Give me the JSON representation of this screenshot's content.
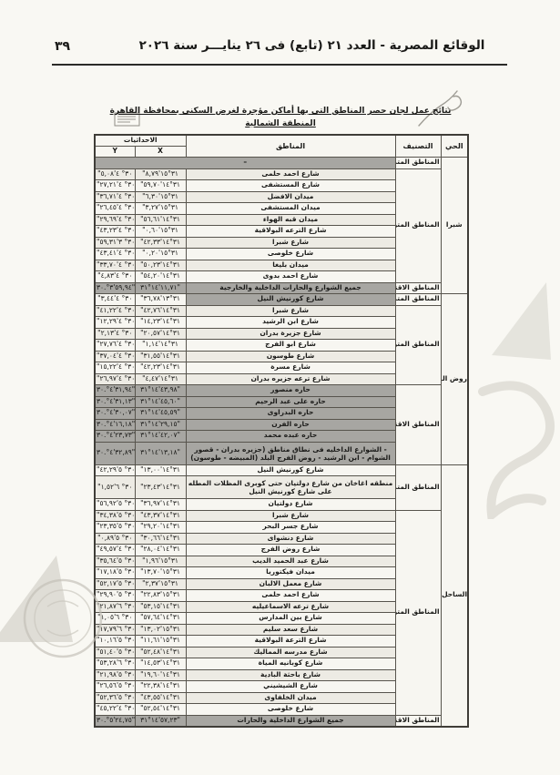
{
  "page_header": {
    "gazette_title": "الوقائع المصرية - العدد ٢١ (تابع) فى ٢٦ ينايـــر سنة ٢٠٢٦",
    "page_number": "٣٩"
  },
  "table_title": "نتائج عمل لجان حصر المناطق التى بها أماكن مؤجرة لغرض السكنى بمحافظة القاهرة",
  "table_subtitle": "المنطقة الشمالية",
  "colors": {
    "paper": "#f9f8f3",
    "shaded_row": "#a7a6a2",
    "border": "#57544d",
    "ink": "#1a1a18"
  },
  "table": {
    "headers": {
      "district": "الحي",
      "classification": "التصنيف",
      "areas": "المناطق",
      "coordinates": "الاحداثيات",
      "x": "X",
      "y": "Y"
    },
    "districts": [
      {
        "name": "شبرا",
        "groups": [
          {
            "label": "المناطق المتميزة",
            "rows": [
              {
                "area": "–",
                "x": "",
                "y": "",
                "shade": "full"
              }
            ]
          },
          {
            "label": "المناطق المتوسطة",
            "rows": [
              {
                "area": "شارع احمد حلمى",
                "x": "\"٨,٧٩'١٥°٣١",
                "y": "\"٥,٠٨'٤ °٣٠",
                "shade": "none"
              },
              {
                "area": "شارع المستشفى",
                "x": "\"٥٩,٧٠'١٤°٣١",
                "y": "\"٢٧,٢١'٤ °٣٠",
                "shade": "none"
              },
              {
                "area": "ميدان الافضل",
                "x": "\"٦,٣٠'١٥°٣١",
                "y": "\"٣٦,٧١'٤ °٣٠",
                "shade": "none"
              },
              {
                "area": "ميدان المستشفى",
                "x": "\"٣,٢٧'١٥°٣١",
                "y": "\"٢٦,٤٥'٤ °٣٠",
                "shade": "none"
              },
              {
                "area": "ميدان قبه الهواء",
                "x": "\"٥٦,٦١'١٤°٣١",
                "y": "\"٢٩,٦٩'٤ °٣٠",
                "shade": "none"
              },
              {
                "area": "شارع الترعه البولاقية",
                "x": "\"٠,٦٠'١٥°٣١",
                "y": "\"٤٣,٢٣'٤ °٣٠",
                "shade": "none"
              },
              {
                "area": "شارع شبرا",
                "x": "\"٤٢,٣٣'١٤°٣١",
                "y": "\"٥٩,٣١'٣ °٣٠",
                "shade": "none"
              },
              {
                "area": "شارع خلوصى",
                "x": "\"٠,٢٠'١٥°٣١",
                "y": "\"٤٣,٤١'٤ °٣٠",
                "shade": "none"
              },
              {
                "area": "ميدان بليغا",
                "x": "\"٥٠,٢٣'١٤°٣١",
                "y": "\"٣٣,٧٠'٤ °٣٠",
                "shade": "none"
              },
              {
                "area": "شارع احمد بدوى",
                "x": "\"٥٤,٢٠'١٤°٣١",
                "y": "\"٤,٨٣'٤ °٣٠",
                "shade": "none"
              }
            ]
          },
          {
            "label": "المناطق الاقتصادية",
            "rows": [
              {
                "area": "جميع الشوارع والحارات الداخلية والخارجية",
                "x": "٣١°١٤'١١,٧١\"",
                "y": "٣٠.°٣'٥٩,٩٤\"",
                "shade": "full"
              }
            ]
          }
        ]
      },
      {
        "name": "روض الفرج",
        "groups": [
          {
            "label": "المناطق المتميزة",
            "rows": [
              {
                "area": "شارع كورنيش النيل",
                "x": "\"٣٦,٧٨'١٣°٣١",
                "y": "\"٣,٤٤'٤ °٣٠",
                "shade": "area"
              }
            ]
          },
          {
            "label": "المناطق المتوسطة",
            "rows": [
              {
                "area": "شارع شبرا",
                "x": "\"٤٢,٧٦'١٤°٣١",
                "y": "\"٤١,٢٢'٤ °٣٠",
                "shade": "none"
              },
              {
                "area": "شارع ابن الرشيد",
                "x": "\"١٤,٢٣'١٤°٣١",
                "y": "\"١٢,٢٩'٤ °٣٠",
                "shade": "none"
              },
              {
                "area": "شارع جزيرة بدران",
                "x": "\"٢٠,٥٧'١٤°٣١",
                "y": "\"٢,١٣'٤ °٣٠",
                "shade": "none"
              },
              {
                "area": "شارع ابو الفرج",
                "x": "\"١,١٤'١٤°٣١",
                "y": "\"٢٧,٧٦'٤ °٣٠",
                "shade": "none"
              },
              {
                "area": "شارع طوسون",
                "x": "\"٣١,٥٥'١٤°٣١",
                "y": "\"٣٧,٠٤'٤ °٣٠",
                "shade": "none"
              },
              {
                "area": "شارع مسرة",
                "x": "\"٤٢,٢٣'١٤°٣١",
                "y": "\"١٥,٢٢'٤ °٣٠",
                "shade": "none"
              },
              {
                "area": "شارع ترعه جزيره بدران",
                "x": "\"٤,٤٧'١٤°٣١",
                "y": "\"٢٦,٩٧'٤ °٣٠",
                "shade": "none"
              }
            ]
          },
          {
            "label": "المناطق الاقتصادية",
            "rows": [
              {
                "area": "حاره منصور",
                "x": "٣١°١٤'٤٣,٩٨\"",
                "y": "٣٠.°٤'٣١,٩٤\"",
                "shade": "full"
              },
              {
                "area": "حاره على عبد الرحيم",
                "x": "٣١°١٤'٤٥,٦٠\"",
                "y": "٣٠.°٤'٣١,١٣\"",
                "shade": "full"
              },
              {
                "area": "حاره البدراوى",
                "x": "٣١°١٤'٤٥,٥٩\"",
                "y": "٣٠.°٤'٣٠,٠٧\"",
                "shade": "full"
              },
              {
                "area": "حاره الفرن",
                "x": "٣١°١٤'٢٩,١٥\"",
                "y": "٣٠.°٤'١٦,١٨\"",
                "shade": "full"
              },
              {
                "area": "حاره عبده محمد",
                "x": "٣١°١٤'٤٢,٠٧\"",
                "y": "٣٠.°٤'٢٣,٧٣\"",
                "shade": "full"
              },
              {
                "area": "- الشوارع الداخليه فى نطاق مناطق (جزيره بدران - قصور الشوام - ابن الرشيد - روض الفرج البلد (المبيضه - طوسون)",
                "x": "٣١°١٤'١٣,١٨\"",
                "y": "٣٠.°٤'٣٢,٨٩\"",
                "shade": "full",
                "tall": true
              }
            ]
          }
        ]
      },
      {
        "name": "الساحل",
        "groups": [
          {
            "label": "المناطق المتميزة",
            "rows": [
              {
                "area": "شارع كورنيش النيل",
                "x": "\"١٣,٠٠'١٤°٣١",
                "y": "\"٤٢,٢٩'٥ °٣٠",
                "shade": "none"
              },
              {
                "area": "منطقه اغاخان من شارع دولتيان حتى كوبرى المظلات المطله على شارع كورنيش النيل",
                "x": "\"٢٣,٤٣'١٤°٣١",
                "y": "\"١,٥٢'٦ °٣٠",
                "shade": "none",
                "tall": true
              },
              {
                "area": "شارع دولتيان",
                "x": "\"٣٦,٩٧'١٤°٣١",
                "y": "\"٥٦,٩٢'٥ °٣٠",
                "shade": "none"
              }
            ]
          },
          {
            "label": "المناطق المتوسطة",
            "rows": [
              {
                "area": "شارع شبرا",
                "x": "\"٤٣,٣٧'١٤°٣١",
                "y": "\"٣٤,٣٨'٥ °٣٠",
                "shade": "none"
              },
              {
                "area": "شارع جسر البحر",
                "x": "\"٢٩,٢٠'١٤°٣١",
                "y": "\"٢٣,٣٥'٥ °٣٠",
                "shade": "none"
              },
              {
                "area": "شارع دنشواى",
                "x": "\"٣٠,٦٦'١٤°٣١",
                "y": "\"٠,٨٩'٥ °٣٠",
                "shade": "none"
              },
              {
                "area": "شارع روض الفرج",
                "x": "\"٢٨,٠٤'١٤°٣١",
                "y": "\"٤٩,٥٧'٤ °٣٠",
                "shade": "none"
              },
              {
                "area": "شارع عبد الحميد الديب",
                "x": "\"١,٩٦'١٥°٣١",
                "y": "\"٣٥,٦٤'٥ °٣٠",
                "shade": "none"
              },
              {
                "area": "ميدان فيكتوريا",
                "x": "\"١٣,٧٠'١٥°٣١",
                "y": "\"١٧,١٨'٥ °٣٠",
                "shade": "none"
              },
              {
                "area": "شارع معمل الالبان",
                "x": "\"٢,٣٧'١٥°٣١",
                "y": "\"٥٢,١٧'٥ °٣٠",
                "shade": "none"
              },
              {
                "area": "شارع احمد حلمى",
                "x": "\"٢٢,٨٣'١٥°٣١",
                "y": "\"٢٩,٩٠'٥ °٣٠",
                "shade": "none"
              },
              {
                "area": "شارع ترعه الاسماعيليه",
                "x": "\"٥٣,١٥'١٤°٣١",
                "y": "\"٢١,٨٧'٦ °٣٠",
                "shade": "none"
              },
              {
                "area": "شارع بين المدارس",
                "x": "\"٥٧,٦٤'١٤°٣١",
                "y": "\"١,٠٥'٦ °٣٠",
                "shade": "none"
              },
              {
                "area": "شارع سعد سليم",
                "x": "\"١٣,٠٢'١٥°٣١",
                "y": "\"١٧,٧٩'٦ °٣٠",
                "shade": "none"
              },
              {
                "area": "شارع الترعة البولاقية",
                "x": "\"١١,٦١'١٥°٣١",
                "y": "\"١٠,١٦'٥ °٣٠",
                "shade": "none"
              },
              {
                "area": "شارع مدرسه المماليك",
                "x": "\"٥٢,٤٨'١٤°٣١",
                "y": "\"٥١,٤٠'٥ °٣٠",
                "shade": "none"
              },
              {
                "area": "شارع كوبانيه المياة",
                "x": "\"١٤,٥٣'١٤°٣١",
                "y": "\"٥٣,٢٨'٦ °٣٠",
                "shade": "none"
              },
              {
                "area": "شارع باحثة البادية",
                "x": "\"١٩,٦٠'١٤°٣١",
                "y": "\"٢١,٩٨'٥ °٣٠",
                "shade": "none"
              },
              {
                "area": "شارع الشيشيني",
                "x": "\"٢٢,٣٨'١٤°٣١",
                "y": "\"٢٦,٥٦'٥ °٣٠",
                "shade": "none"
              },
              {
                "area": "ميدان الخلفاوى",
                "x": "\"٤٣,٥٥'١٤°٣١",
                "y": "\"٥٢,٣٦'٥ °٣٠",
                "shade": "none"
              },
              {
                "area": "شارع خلوصى",
                "x": "\"٥٢,٥٤'١٤°٣١",
                "y": "\"٤٥,٢٢'٤ °٣٠",
                "shade": "none"
              }
            ]
          },
          {
            "label": "المناطق الاقتصادية",
            "rows": [
              {
                "area": "جميع الشوارع الداخلية والحارات",
                "x": "٣١°١٤'٥٧,٢٣\"",
                "y": "٣٠.°٥'٢٤,٧٥\"",
                "shade": "full"
              }
            ]
          }
        ]
      }
    ]
  }
}
